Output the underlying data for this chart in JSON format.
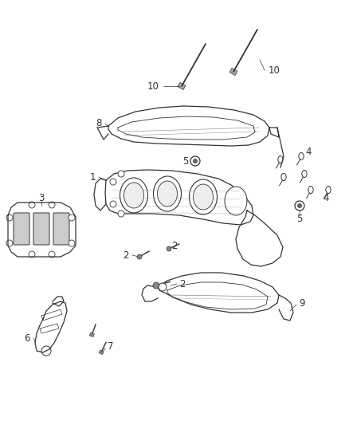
{
  "background_color": "#ffffff",
  "line_color": "#333333",
  "label_fontsize": 8.5,
  "fig_width": 4.38,
  "fig_height": 5.33,
  "dpi": 100
}
